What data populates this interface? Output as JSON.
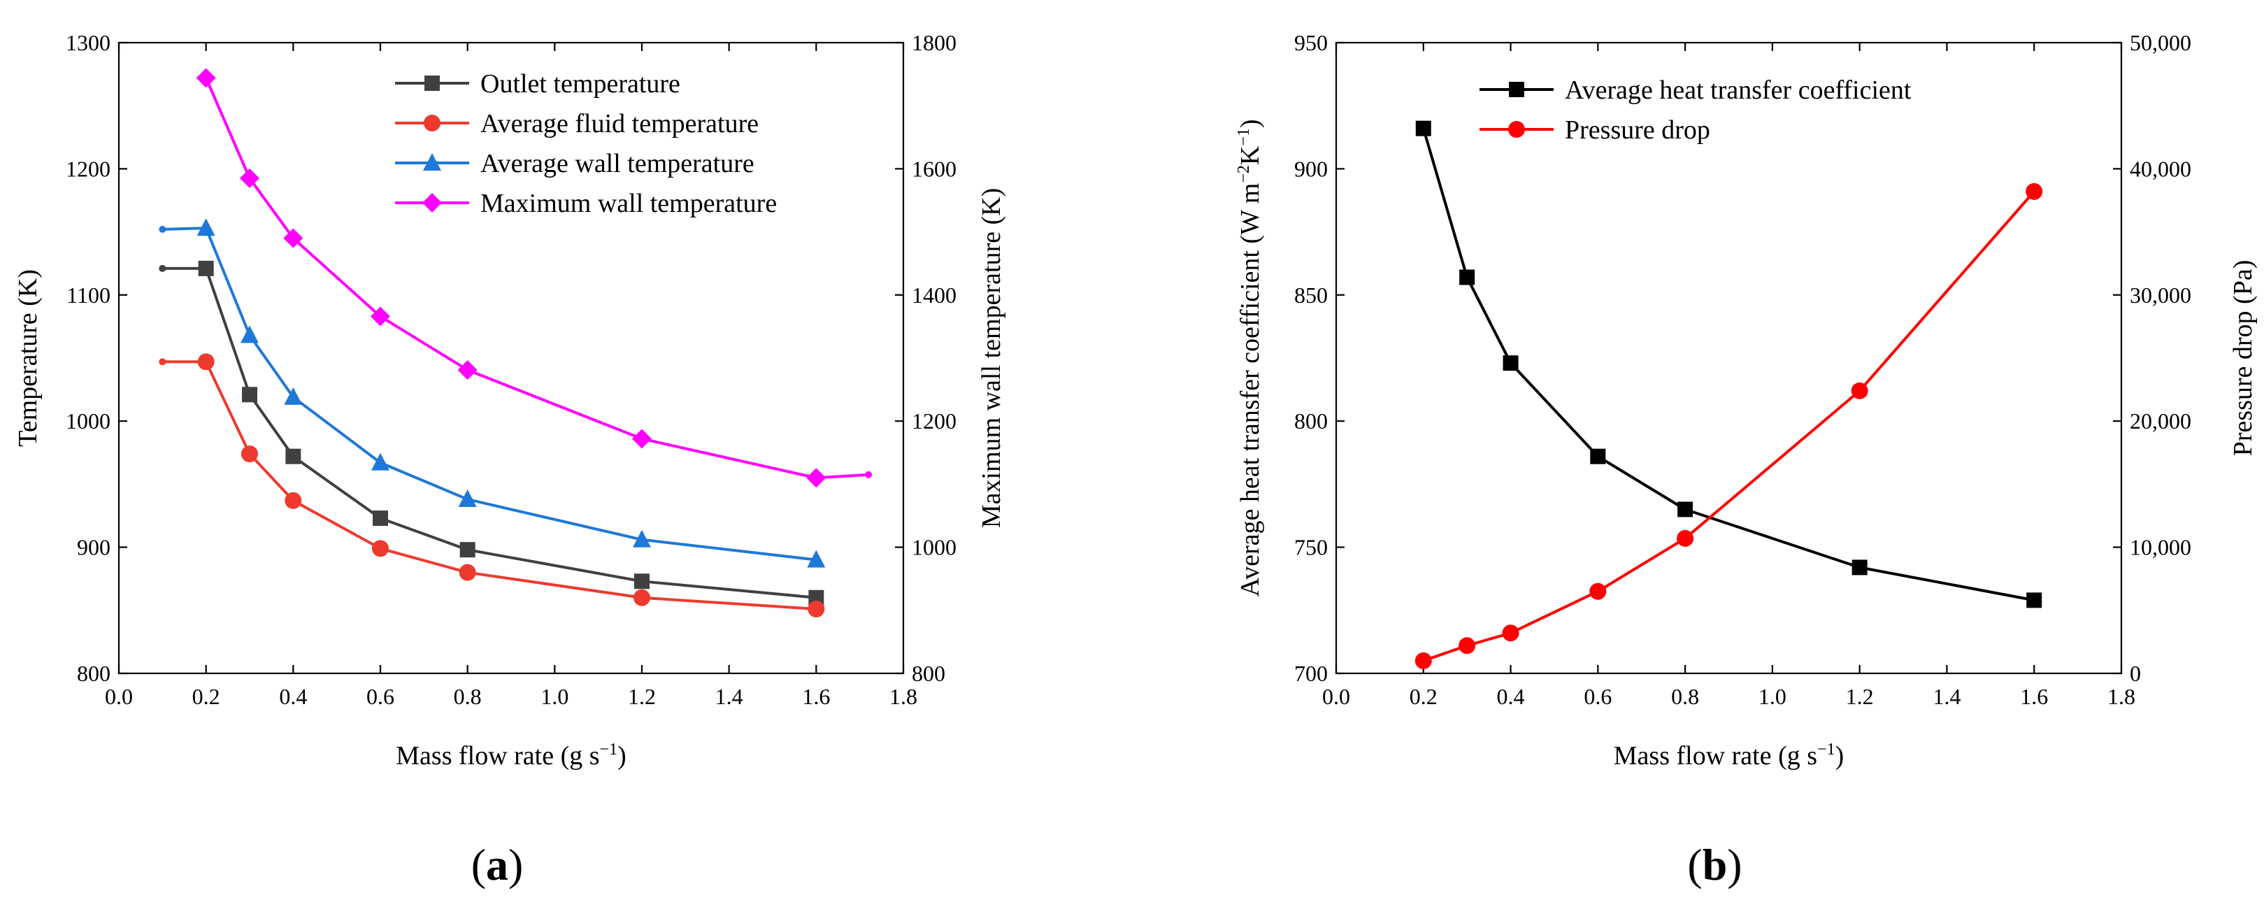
{
  "chart_data": [
    {
      "panel_label_open": "(",
      "panel_label_letter": "a",
      "panel_label_close": ")",
      "type": "line",
      "xlabel_main": "Mass flow rate (g s",
      "xlabel_sup": "−1",
      "xlabel_end": ")",
      "ylabel": "Temperature (K)",
      "y2label": "Maximum wall temperature (K)",
      "xlim": [
        0.0,
        1.8
      ],
      "ylim": [
        800,
        1300
      ],
      "y2lim": [
        800,
        1800
      ],
      "xticks": [
        "0.0",
        "0.2",
        "0.4",
        "0.6",
        "0.8",
        "1.0",
        "1.2",
        "1.4",
        "1.6",
        "1.8"
      ],
      "yticks": [
        "800",
        "900",
        "1000",
        "1100",
        "1200",
        "1300"
      ],
      "y2ticks": [
        "800",
        "1000",
        "1200",
        "1400",
        "1600",
        "1800"
      ],
      "legend_position": "top-right",
      "series": [
        {
          "name": "Outlet temperature",
          "color": "#404040",
          "marker": "square",
          "axis": "left",
          "x": [
            0.2,
            0.3,
            0.4,
            0.6,
            0.8,
            1.2,
            1.6
          ],
          "values": [
            1121,
            1021,
            972,
            923,
            898,
            873,
            860
          ],
          "extension": {
            "x": 0.1,
            "value": 1121
          }
        },
        {
          "name": "Average fluid temperature",
          "color": "#ee3a2e",
          "marker": "circle",
          "axis": "left",
          "x": [
            0.2,
            0.3,
            0.4,
            0.6,
            0.8,
            1.2,
            1.6
          ],
          "values": [
            1047,
            974,
            937,
            899,
            880,
            860,
            851
          ],
          "extension": {
            "x": 0.1,
            "value": 1047
          }
        },
        {
          "name": "Average wall temperature",
          "color": "#1e78d8",
          "marker": "triangle",
          "axis": "left",
          "x": [
            0.2,
            0.3,
            0.4,
            0.6,
            0.8,
            1.2,
            1.6
          ],
          "values": [
            1153,
            1068,
            1019,
            967,
            938,
            906,
            890
          ],
          "extension": {
            "x": 0.1,
            "value": 1152
          }
        },
        {
          "name": "Maximum wall temperature",
          "color": "#ff00ff",
          "marker": "diamond",
          "axis": "right",
          "x": [
            0.2,
            0.3,
            0.4,
            0.6,
            0.8,
            1.2,
            1.6
          ],
          "values": [
            1744,
            1585,
            1490,
            1366,
            1281,
            1172,
            1110
          ],
          "extension": {
            "x": 1.72,
            "value": 1115
          }
        }
      ]
    },
    {
      "panel_label_open": "(",
      "panel_label_letter": "b",
      "panel_label_close": ")",
      "type": "line",
      "xlabel_main": "Mass flow rate (g s",
      "xlabel_sup": "−1",
      "xlabel_end": ")",
      "ylabel_main": "Average heat transfer coefficient (W m",
      "ylabel_sup1": "−2",
      "ylabel_mid": "K",
      "ylabel_sup2": "−1",
      "ylabel_end": ")",
      "y2label": "Pressure drop (Pa)",
      "xlim": [
        0.0,
        1.8
      ],
      "ylim": [
        700,
        950
      ],
      "y2lim": [
        0,
        50000
      ],
      "xticks": [
        "0.0",
        "0.2",
        "0.4",
        "0.6",
        "0.8",
        "1.0",
        "1.2",
        "1.4",
        "1.6",
        "1.8"
      ],
      "yticks": [
        "700",
        "750",
        "800",
        "850",
        "900",
        "950"
      ],
      "y2ticks": [
        "0",
        "10,000",
        "20,000",
        "30,000",
        "40,000",
        "50,000"
      ],
      "legend_position": "top-left",
      "series": [
        {
          "name": "Average heat transfer coefficient",
          "color": "#000000",
          "marker": "square",
          "axis": "left",
          "x": [
            0.2,
            0.3,
            0.4,
            0.6,
            0.8,
            1.2,
            1.6
          ],
          "values": [
            916,
            857,
            823,
            786,
            765,
            742,
            729
          ]
        },
        {
          "name": "Pressure drop",
          "color": "#ff0000",
          "marker": "circle",
          "axis": "right",
          "x": [
            0.2,
            0.3,
            0.4,
            0.6,
            0.8,
            1.2,
            1.6
          ],
          "values": [
            1000,
            2200,
            3200,
            6500,
            10700,
            22400,
            38200
          ]
        }
      ]
    }
  ]
}
